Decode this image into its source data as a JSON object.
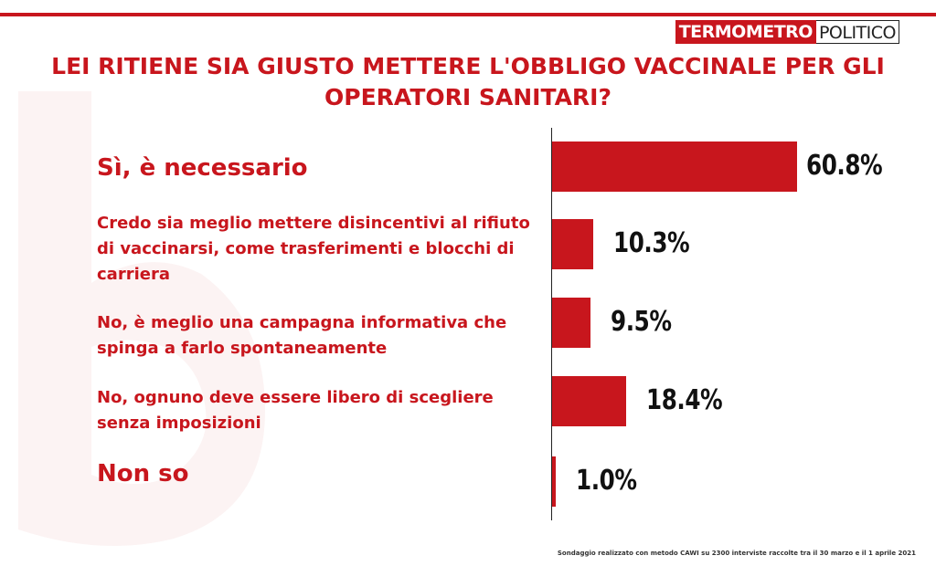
{
  "brand": {
    "part1": "TERMOMETRO",
    "part2": "POLITICO"
  },
  "title": "LEI RITIENE SIA GIUSTO METTERE L'OBBLIGO VACCINALE PER GLI OPERATORI SANITARI?",
  "footnote": "Sondaggio realizzato con metodo CAWI su 2300 interviste raccolte tra il 30 marzo  e il 1 aprile 2021",
  "colors": {
    "accent": "#c8161d",
    "bar": "#c8161d",
    "value_text": "#111111"
  },
  "chart_data": {
    "type": "bar",
    "orientation": "horizontal",
    "title": "LEI RITIENE SIA GIUSTO METTERE L'OBBLIGO VACCINALE PER GLI OPERATORI SANITARI?",
    "categories": [
      "Sì, è necessario",
      "Credo sia meglio mettere disincentivi al rifiuto di vaccinarsi, come trasferimenti e blocchi di carriera",
      "No, è meglio una campagna informativa che spinga a farlo spontaneamente",
      "No, ognuno deve essere libero di scegliere senza imposizioni",
      "Non so"
    ],
    "values": [
      60.8,
      10.3,
      9.5,
      18.4,
      1.0
    ],
    "value_labels": [
      "60.8%",
      "10.3%",
      "9.5%",
      "18.4%",
      "1.0%"
    ],
    "unit": "%",
    "xlim": [
      0,
      100
    ],
    "grid": false,
    "legend": "none"
  }
}
